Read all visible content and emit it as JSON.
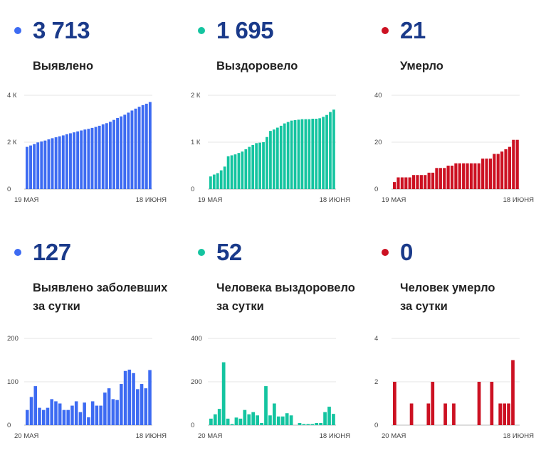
{
  "panels": [
    {
      "id": "cumulative-cases",
      "number": "3 713",
      "caption": [
        "Выявлено"
      ],
      "color": "#3d6bf2"
    },
    {
      "id": "cumulative-recovered",
      "number": "1 695",
      "caption": [
        "Выздоровело"
      ],
      "color": "#14c4a0"
    },
    {
      "id": "cumulative-deaths",
      "number": "21",
      "caption": [
        "Умерло"
      ],
      "color": "#cc1122"
    },
    {
      "id": "daily-cases",
      "number": "127",
      "caption": [
        "Выявлено заболевших",
        "за сутки"
      ],
      "color": "#3d6bf2"
    },
    {
      "id": "daily-recovered",
      "number": "52",
      "caption": [
        "Человека выздоровело",
        "за сутки"
      ],
      "color": "#14c4a0"
    },
    {
      "id": "daily-deaths",
      "number": "0",
      "caption": [
        "Человек умерло",
        "за сутки"
      ],
      "color": "#cc1122"
    }
  ],
  "chart_data": [
    {
      "type": "bar",
      "title": "",
      "color": "#3d6bf2",
      "ylim": [
        0,
        4000
      ],
      "yticks": [
        0,
        2000,
        4000
      ],
      "ytick_labels": [
        "0",
        "2 К",
        "4 К"
      ],
      "x_labels": [
        "19 МАЯ",
        "18 ИЮНЯ"
      ],
      "values": [
        1800,
        1860,
        1920,
        1990,
        2030,
        2070,
        2120,
        2170,
        2210,
        2250,
        2290,
        2340,
        2380,
        2420,
        2460,
        2500,
        2540,
        2570,
        2610,
        2650,
        2700,
        2760,
        2810,
        2870,
        2950,
        3030,
        3100,
        3170,
        3260,
        3350,
        3430,
        3510,
        3580,
        3640,
        3713
      ]
    },
    {
      "type": "bar",
      "title": "",
      "color": "#14c4a0",
      "ylim": [
        0,
        2000
      ],
      "yticks": [
        0,
        1000,
        2000
      ],
      "ytick_labels": [
        "0",
        "1 К",
        "2 К"
      ],
      "x_labels": [
        "19 МАЯ",
        "18 ИЮНЯ"
      ],
      "values": [
        270,
        310,
        340,
        400,
        480,
        700,
        720,
        740,
        770,
        800,
        850,
        900,
        940,
        980,
        990,
        1000,
        1110,
        1240,
        1270,
        1310,
        1350,
        1400,
        1430,
        1460,
        1470,
        1480,
        1490,
        1490,
        1490,
        1500,
        1500,
        1510,
        1540,
        1580,
        1643,
        1695
      ]
    },
    {
      "type": "bar",
      "title": "",
      "color": "#cc1122",
      "ylim": [
        0,
        40
      ],
      "yticks": [
        0,
        20,
        40
      ],
      "ytick_labels": [
        "0",
        "20",
        "40"
      ],
      "x_labels": [
        "19 МАЯ",
        "18 ИЮНЯ"
      ],
      "values": [
        3,
        5,
        5,
        5,
        5,
        6,
        6,
        6,
        6,
        7,
        7,
        9,
        9,
        9,
        10,
        10,
        11,
        11,
        11,
        11,
        11,
        11,
        11,
        13,
        13,
        13,
        15,
        15,
        16,
        17,
        18,
        21,
        21
      ]
    },
    {
      "type": "bar",
      "title": "",
      "color": "#3d6bf2",
      "ylim": [
        0,
        200
      ],
      "yticks": [
        0,
        100,
        200
      ],
      "ytick_labels": [
        "0",
        "100",
        "200"
      ],
      "x_labels": [
        "20 МАЯ",
        "18 ИЮНЯ"
      ],
      "values": [
        35,
        65,
        90,
        40,
        35,
        40,
        60,
        55,
        50,
        35,
        35,
        45,
        55,
        30,
        52,
        18,
        55,
        45,
        45,
        75,
        85,
        60,
        58,
        95,
        125,
        128,
        120,
        83,
        95,
        85,
        127
      ]
    },
    {
      "type": "bar",
      "title": "",
      "color": "#14c4a0",
      "ylim": [
        0,
        400
      ],
      "yticks": [
        0,
        200,
        400
      ],
      "ytick_labels": [
        "0",
        "200",
        "400"
      ],
      "x_labels": [
        "20 МАЯ",
        "18 ИЮНЯ"
      ],
      "values": [
        30,
        50,
        75,
        290,
        30,
        5,
        35,
        30,
        70,
        50,
        60,
        45,
        10,
        180,
        45,
        100,
        40,
        40,
        55,
        45,
        0,
        10,
        5,
        5,
        5,
        10,
        10,
        60,
        85,
        52
      ]
    },
    {
      "type": "bar",
      "title": "",
      "color": "#cc1122",
      "ylim": [
        0,
        4
      ],
      "yticks": [
        0,
        2,
        4
      ],
      "ytick_labels": [
        "0",
        "2",
        "4"
      ],
      "x_labels": [
        "20 МАЯ",
        "18 ИЮНЯ"
      ],
      "values": [
        2,
        0,
        0,
        0,
        1,
        0,
        0,
        0,
        1,
        2,
        0,
        0,
        1,
        0,
        1,
        0,
        0,
        0,
        0,
        0,
        2,
        0,
        0,
        2,
        0,
        1,
        1,
        1,
        3,
        0
      ]
    }
  ]
}
